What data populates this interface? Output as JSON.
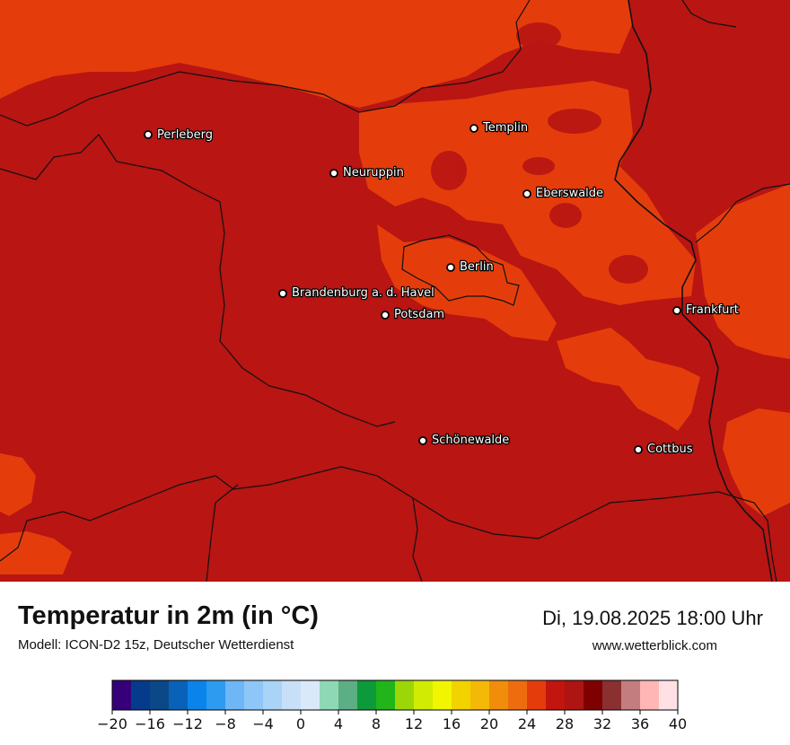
{
  "map": {
    "colors": {
      "base": "#b81513",
      "warm": "#e43d0b",
      "border": "#111111"
    },
    "cities": [
      {
        "name": "Perleberg"
      },
      {
        "name": "Templin"
      },
      {
        "name": "Neuruppin"
      },
      {
        "name": "Eberswalde"
      },
      {
        "name": "Berlin"
      },
      {
        "name": "Brandenburg a. d. Havel"
      },
      {
        "name": "Potsdam"
      },
      {
        "name": "Frankfurt"
      },
      {
        "name": "Schönewalde"
      },
      {
        "name": "Cottbus"
      }
    ]
  },
  "footer": {
    "title": "Temperatur in 2m (in °C)",
    "model": "Modell: ICON-D2 15z, Deutscher Wetterdienst",
    "datetime": "Di, 19.08.2025 18:00 Uhr",
    "website": "www.wetterblick.com"
  },
  "legend": {
    "colors": [
      "#36007a",
      "#063a8a",
      "#0a4888",
      "#0961b8",
      "#0a84ea",
      "#2d9bf0",
      "#6eb6f5",
      "#8ec7f7",
      "#a9d3f7",
      "#c8e0f7",
      "#d9e9f9",
      "#8fd8b6",
      "#5cae84",
      "#0d9a3a",
      "#21b51a",
      "#9dd607",
      "#d1ec02",
      "#f1f500",
      "#f2d300",
      "#f3b906",
      "#f08d0b",
      "#ee6c0e",
      "#e43d0b",
      "#c2150f",
      "#ad1513",
      "#7f0000",
      "#8b3031",
      "#c47d7f",
      "#ffb6b4",
      "#ffe1e4"
    ],
    "ticks": [
      "−20",
      "−16",
      "−12",
      "−8",
      "−4",
      "0",
      "4",
      "8",
      "12",
      "16",
      "20",
      "24",
      "28",
      "32",
      "36",
      "40"
    ]
  }
}
